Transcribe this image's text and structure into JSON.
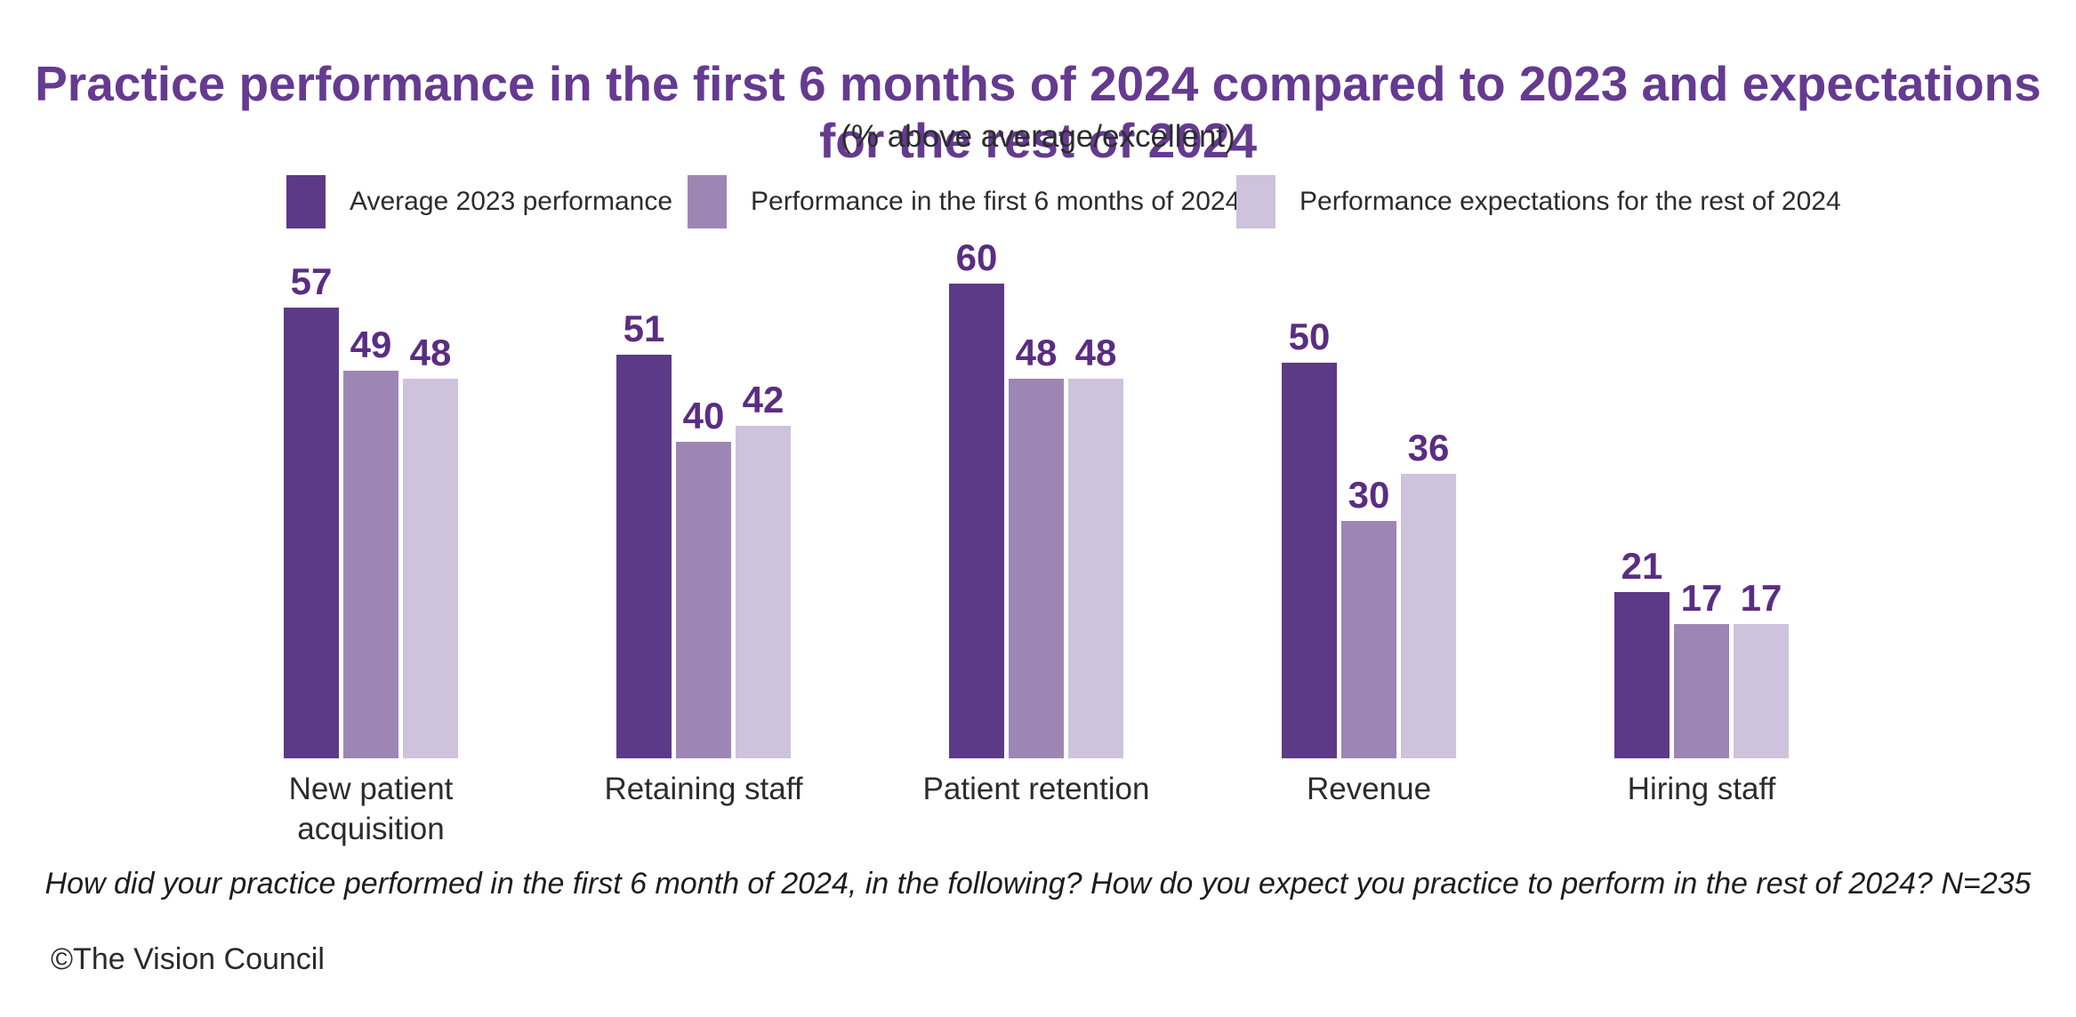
{
  "title": {
    "text": "Practice performance in the first 6 months of 2024 compared to 2023 and expectations for the rest of 2024",
    "color": "#653a90"
  },
  "subtitle": {
    "text": "(% above average/excellent)"
  },
  "colors": {
    "series_dark": "#5c3a87",
    "series_medium": "#9d86b4",
    "series_light": "#cec2dc",
    "value_label": "#5b2d82",
    "title_purple": "#653a90",
    "body_text": "#2c2c2c"
  },
  "chart_data": {
    "type": "bar",
    "title": "Practice performance in the first 6 months of 2024 compared to 2023 and expectations for the rest of 2024",
    "subtitle": "(% above average/excellent)",
    "categories": [
      "New patient acquisition",
      "Retaining staff",
      "Patient retention",
      "Revenue",
      "Hiring staff"
    ],
    "series": [
      {
        "name": "Average 2023 performance",
        "color": "#5c3a87",
        "values": [
          57,
          51,
          60,
          50,
          21
        ]
      },
      {
        "name": "Performance in the first 6 months of 2024",
        "color": "#9d86b4",
        "values": [
          49,
          40,
          48,
          30,
          17
        ]
      },
      {
        "name": "Performance expectations for the rest of 2024",
        "color": "#cec2dc",
        "values": [
          48,
          42,
          48,
          36,
          17
        ]
      }
    ],
    "value_labels": true,
    "ylim": [
      0,
      63
    ],
    "axes_hidden": true,
    "gridlines": false,
    "legend_position": "top"
  },
  "footnote": {
    "text": "How did your practice performed in the first 6 month of 2024, in the following? How do you expect you practice to perform in the rest of 2024?  N=235"
  },
  "copyright": {
    "text": "©The Vision Council"
  }
}
